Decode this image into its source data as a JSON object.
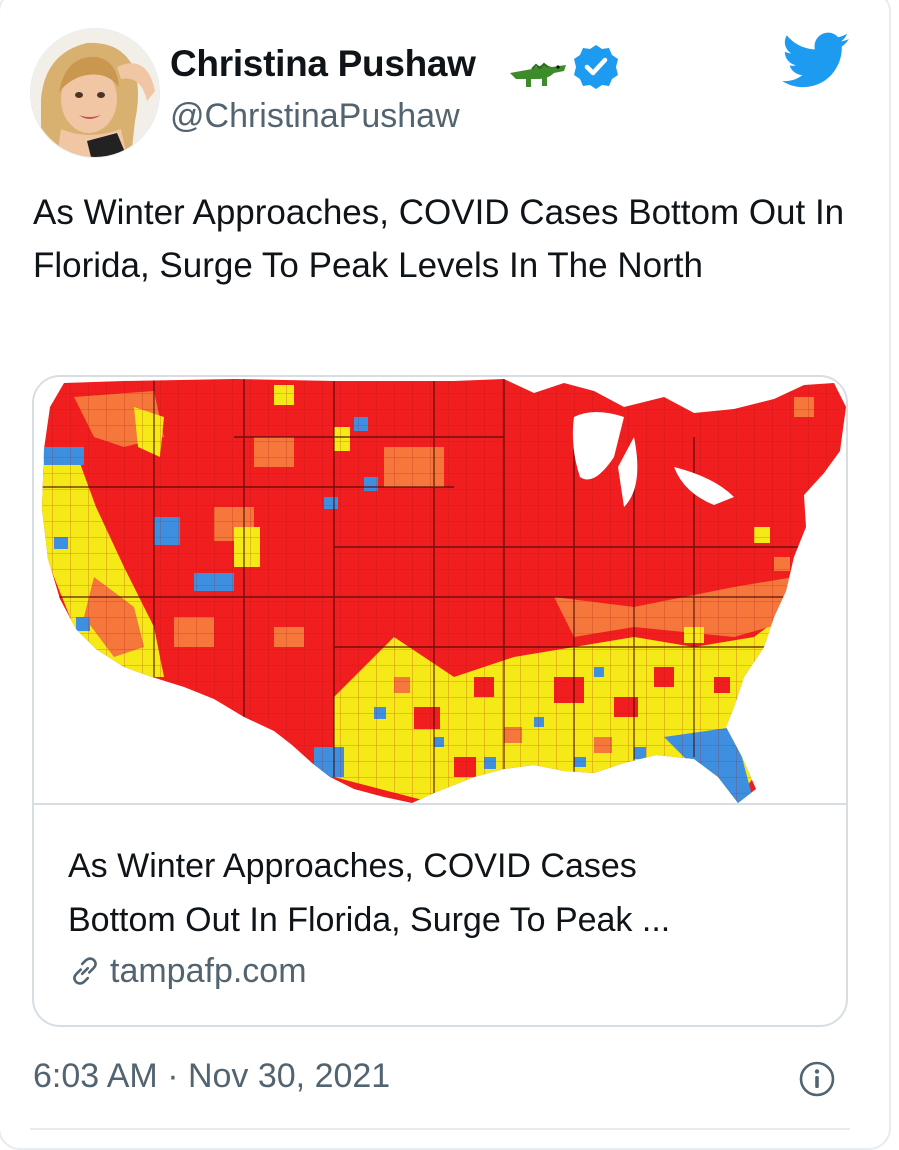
{
  "tweet": {
    "author": {
      "display_name": "Christina Pushaw",
      "handle": "@ChristinaPushaw",
      "name_emoji_icon": "crocodile-icon",
      "verified_icon": "verified-badge-icon",
      "verified_color": "#1d9bf0"
    },
    "platform_icon": "twitter-bird-icon",
    "platform_color": "#1d9bf0",
    "text": "As Winter Approaches, COVID Cases Bottom Out In Florida, Surge To Peak Levels In The North",
    "link_card": {
      "image_icon": "us-county-covid-map",
      "title_line1": "As Winter Approaches, COVID Cases",
      "title_line2": "Bottom Out In Florida, Surge To Peak ...",
      "domain": "tampafp.com",
      "domain_icon": "link-icon"
    },
    "timestamp": "6:03 AM · Nov 30, 2021",
    "info_icon": "info-icon"
  },
  "map_colors": {
    "high": "#f01e1e",
    "elevated": "#f5773b",
    "moderate": "#f5ea18",
    "low": "#3f8fe0"
  }
}
